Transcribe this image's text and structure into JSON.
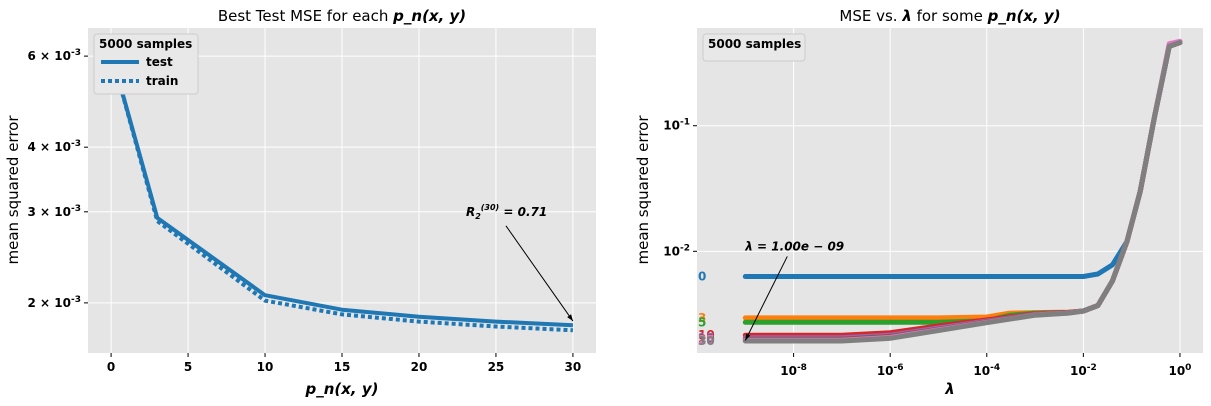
{
  "chart_data": [
    {
      "type": "line",
      "title": "Best Test MSE for each ",
      "title_math": "p_n(x, y)",
      "xlabel": "p_n(x, y)",
      "ylabel": "mean squared error",
      "y_scale": "log",
      "xlim": [
        -1.5,
        31.5
      ],
      "ylim": [
        0.0016,
        0.0068
      ],
      "x_ticks": [
        0,
        5,
        10,
        15,
        20,
        25,
        30
      ],
      "x_tick_labels": [
        "0",
        "5",
        "10",
        "15",
        "20",
        "25",
        "30"
      ],
      "y_ticks": [
        0.002,
        0.003,
        0.004,
        0.006
      ],
      "y_tick_labels": [
        "2 × 10^-3",
        "3 × 10^-3",
        "4 × 10^-3",
        "6 × 10^-3"
      ],
      "legend": {
        "title": "5000 samples",
        "placement": "top-left",
        "entries": [
          "test",
          "train"
        ]
      },
      "series": [
        {
          "name": "test",
          "style": "solid",
          "color": "#1f77b4",
          "x": [
            0,
            3,
            10,
            15,
            20,
            25,
            30
          ],
          "y": [
            0.0061,
            0.00292,
            0.00207,
            0.00194,
            0.00188,
            0.00184,
            0.00181
          ]
        },
        {
          "name": "train",
          "style": "dotted",
          "color": "#1f77b4",
          "x": [
            0,
            3,
            10,
            15,
            20,
            25,
            30
          ],
          "y": [
            0.0061,
            0.00288,
            0.00202,
            0.0019,
            0.00184,
            0.0018,
            0.00177
          ]
        }
      ],
      "annotation": {
        "text": "R_2^(30) = 0.71",
        "x": 30,
        "y": 0.00182,
        "text_x": 25,
        "text_y": 0.003
      }
    },
    {
      "type": "line",
      "title": "MSE vs. ",
      "title_math": "λ",
      "title_mid": " for some ",
      "title_math2": "p_n(x, y)",
      "xlabel": "λ",
      "ylabel": "mean squared error",
      "x_scale": "log",
      "y_scale": "log",
      "xlim": [
        1e-10,
        3.0
      ],
      "ylim": [
        0.00155,
        0.6
      ],
      "x_ticks": [
        1e-08,
        1e-06,
        0.0001,
        0.01,
        1
      ],
      "x_tick_labels": [
        "10^-8",
        "10^-6",
        "10^-4",
        "10^-2",
        "10^0"
      ],
      "y_ticks": [
        0.01,
        0.1
      ],
      "y_tick_labels": [
        "10^-2",
        "10^-1"
      ],
      "legend": {
        "title": "5000 samples",
        "placement": "top-left"
      },
      "series": [
        {
          "name": "0",
          "color": "#1f77b4",
          "x": [
            1e-09,
            0.001,
            0.01,
            0.02,
            0.04,
            0.08,
            0.15,
            0.3,
            0.6,
            1.0
          ],
          "y": [
            0.0063,
            0.0063,
            0.0063,
            0.0066,
            0.0078,
            0.012,
            0.03,
            0.12,
            0.43,
            0.46
          ]
        },
        {
          "name": "3",
          "color": "#ff7f0e",
          "x": [
            1e-09,
            1e-05,
            0.0001,
            0.0003,
            0.001,
            0.005,
            0.01,
            0.02,
            0.04,
            0.08,
            0.15,
            0.3,
            0.6,
            1.0
          ],
          "y": [
            0.00295,
            0.00295,
            0.003,
            0.00322,
            0.00325,
            0.00328,
            0.00335,
            0.0037,
            0.0058,
            0.012,
            0.03,
            0.12,
            0.43,
            0.46
          ]
        },
        {
          "name": "5",
          "color": "#2ca02c",
          "x": [
            1e-09,
            1e-05,
            0.0001,
            0.0003,
            0.001,
            0.005,
            0.01,
            0.02,
            0.04,
            0.08,
            0.15,
            0.3,
            0.6,
            1.0
          ],
          "y": [
            0.00272,
            0.00272,
            0.0028,
            0.0031,
            0.00322,
            0.00326,
            0.00335,
            0.0037,
            0.0058,
            0.012,
            0.03,
            0.12,
            0.43,
            0.46
          ]
        },
        {
          "name": "10",
          "color": "#d62728",
          "x": [
            1e-09,
            1e-07,
            1e-06,
            1e-05,
            0.0001,
            0.001,
            0.005,
            0.01,
            0.02,
            0.04,
            0.08,
            0.15,
            0.3,
            0.6,
            1.0
          ],
          "y": [
            0.00215,
            0.00215,
            0.00225,
            0.00255,
            0.00285,
            0.00318,
            0.00326,
            0.00335,
            0.0037,
            0.0058,
            0.012,
            0.03,
            0.12,
            0.43,
            0.46
          ]
        },
        {
          "name": "15",
          "color": "#9467bd",
          "x": [
            1e-09,
            1e-07,
            1e-06,
            1e-05,
            0.0001,
            0.001,
            0.005,
            0.01,
            0.02,
            0.04,
            0.08,
            0.15,
            0.3,
            0.6,
            1.0
          ],
          "y": [
            0.00205,
            0.00205,
            0.00215,
            0.00245,
            0.00278,
            0.00315,
            0.00325,
            0.00335,
            0.0037,
            0.0058,
            0.012,
            0.03,
            0.12,
            0.43,
            0.46
          ]
        },
        {
          "name": "20",
          "color": "#8c564b",
          "x": [
            1e-09,
            1e-07,
            1e-06,
            1e-05,
            0.0001,
            0.001,
            0.005,
            0.01,
            0.02,
            0.04,
            0.08,
            0.15,
            0.3,
            0.6,
            1.0
          ],
          "y": [
            0.002,
            0.002,
            0.0021,
            0.0024,
            0.00275,
            0.00313,
            0.00324,
            0.00335,
            0.0037,
            0.0058,
            0.012,
            0.03,
            0.12,
            0.43,
            0.46
          ]
        },
        {
          "name": "25",
          "color": "#e377c2",
          "x": [
            1e-09,
            1e-07,
            1e-06,
            1e-05,
            0.0001,
            0.001,
            0.005,
            0.01,
            0.02,
            0.04,
            0.08,
            0.15,
            0.3,
            0.6,
            1.0
          ],
          "y": [
            0.00196,
            0.00196,
            0.00206,
            0.00237,
            0.00272,
            0.00311,
            0.00323,
            0.00335,
            0.0037,
            0.0058,
            0.012,
            0.03,
            0.12,
            0.45,
            0.47
          ]
        },
        {
          "name": "30",
          "color": "#7f7f7f",
          "x": [
            1e-09,
            1e-07,
            1e-06,
            1e-05,
            0.0001,
            0.001,
            0.005,
            0.01,
            0.02,
            0.04,
            0.08,
            0.15,
            0.3,
            0.6,
            1.0
          ],
          "y": [
            0.00193,
            0.00193,
            0.00203,
            0.00234,
            0.0027,
            0.0031,
            0.00322,
            0.00335,
            0.0037,
            0.0058,
            0.012,
            0.03,
            0.12,
            0.43,
            0.46
          ]
        }
      ],
      "series_labels": [
        "0",
        "3",
        "5",
        "10",
        "15",
        "20",
        "25",
        "30"
      ],
      "annotation": {
        "text": "λ = 1.00e − 09",
        "x": 1e-09,
        "y": 0.00195,
        "text_x": 1e-09,
        "text_y": 0.0098
      }
    }
  ]
}
